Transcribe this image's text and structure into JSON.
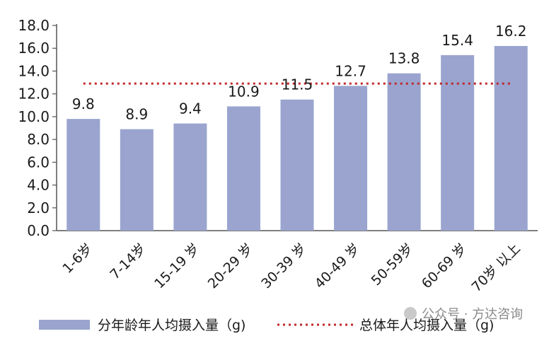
{
  "chart_data": {
    "type": "bar",
    "categories": [
      "1-6岁",
      "7-14岁",
      "15-19 岁",
      "20-29 岁",
      "30-39 岁",
      "40-49 岁",
      "50-59岁",
      "60-69 岁",
      "70岁 以上"
    ],
    "series": [
      {
        "name": "分年龄年人均摄入量（g)",
        "values": [
          9.8,
          8.9,
          9.4,
          10.9,
          11.5,
          12.7,
          13.8,
          15.4,
          16.2
        ]
      }
    ],
    "data_labels": [
      "9.8",
      "8.9",
      "9.4",
      "10.9",
      "11.5",
      "12.7",
      "13.8",
      "15.4",
      "16.2"
    ],
    "reference_line": {
      "name": "总体年人均摄入量（g)",
      "value": 12.9,
      "style": "dotted"
    },
    "y_ticks": [
      "0.0",
      "2.0",
      "4.0",
      "6.0",
      "8.0",
      "10.0",
      "12.0",
      "14.0",
      "16.0",
      "18.0"
    ],
    "ylim": [
      0,
      18
    ],
    "grid": false,
    "legend_position": "bottom",
    "colors": {
      "bar": "#9aa4cf",
      "line": "#c0292c",
      "axis": "#555555"
    }
  },
  "watermark": {
    "text": "公众号 · 方达咨询"
  }
}
